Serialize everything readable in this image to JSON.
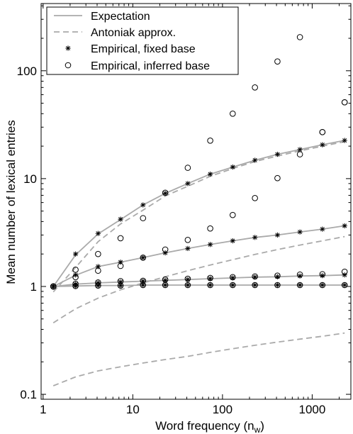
{
  "chart_data": {
    "type": "line",
    "xlabel_main": "Word frequency (n",
    "xlabel_sub": "w",
    "xlabel_close": ")",
    "ylabel": "Mean number of lexical entries",
    "x_scale": "log",
    "y_scale": "log",
    "xlim": [
      0.95,
      2700
    ],
    "ylim": [
      0.09,
      420
    ],
    "x_ticks": [
      1,
      10,
      100,
      1000
    ],
    "x_tick_labels": [
      "1",
      "10",
      "100",
      "1000"
    ],
    "y_ticks": [
      0.1,
      1,
      10,
      100
    ],
    "y_tick_labels": [
      "0.1",
      "1",
      "10",
      "100"
    ],
    "grid": false,
    "legend_position": "top-left",
    "legend": [
      {
        "label": "Expectation",
        "style": "solid-line",
        "color": "#aaaaaa"
      },
      {
        "label": "Antoniak approx.",
        "style": "dashed-line",
        "color": "#aaaaaa"
      },
      {
        "label": "Empirical, fixed base",
        "style": "star-marker",
        "color": "#000000"
      },
      {
        "label": "Empirical, inferred base",
        "style": "open-circle-marker",
        "color": "#000000"
      }
    ],
    "x": [
      1.3,
      2.3,
      4.1,
      7.3,
      13,
      23,
      41,
      73,
      130,
      230,
      410,
      730,
      1300,
      2300
    ],
    "series": [
      {
        "kind": "expectation",
        "values": [
          1.0,
          1.96,
          3.07,
          4.17,
          5.7,
          7.3,
          9.0,
          11.0,
          12.8,
          14.8,
          16.8,
          18.6,
          20.6,
          22.6
        ]
      },
      {
        "kind": "expectation",
        "values": [
          1.0,
          1.27,
          1.53,
          1.68,
          1.85,
          2.05,
          2.25,
          2.45,
          2.65,
          2.85,
          3.0,
          3.2,
          3.4,
          3.65
        ]
      },
      {
        "kind": "expectation",
        "values": [
          1.0,
          1.05,
          1.08,
          1.1,
          1.12,
          1.14,
          1.16,
          1.18,
          1.2,
          1.22,
          1.23,
          1.25,
          1.26,
          1.28
        ]
      },
      {
        "kind": "expectation",
        "values": [
          1.0,
          1.01,
          1.02,
          1.02,
          1.03,
          1.03,
          1.03,
          1.03,
          1.03,
          1.03,
          1.03,
          1.03,
          1.03,
          1.03
        ]
      },
      {
        "kind": "antoniak",
        "values": [
          0.89,
          1.5,
          2.6,
          3.8,
          5.1,
          6.9,
          8.5,
          10.5,
          12.4,
          14.4,
          16.2,
          18.1,
          20.0,
          22.0
        ]
      },
      {
        "kind": "antoniak",
        "values": [
          0.46,
          0.62,
          0.78,
          0.93,
          1.08,
          1.23,
          1.4,
          1.58,
          1.77,
          1.98,
          2.2,
          2.42,
          2.65,
          2.9
        ]
      },
      {
        "kind": "antoniak",
        "values": [
          0.12,
          0.145,
          0.165,
          0.18,
          0.195,
          0.21,
          0.225,
          0.245,
          0.265,
          0.285,
          0.305,
          0.325,
          0.345,
          0.37
        ]
      },
      {
        "kind": "empirical_fixed",
        "values": [
          1.0,
          2.0,
          3.1,
          4.2,
          5.7,
          7.3,
          9.0,
          11.0,
          12.8,
          14.8,
          16.8,
          18.6,
          20.6,
          22.6
        ]
      },
      {
        "kind": "empirical_fixed",
        "values": [
          1.0,
          1.28,
          1.53,
          1.68,
          1.85,
          2.05,
          2.25,
          2.45,
          2.65,
          2.85,
          3.0,
          3.2,
          3.4,
          3.65
        ]
      },
      {
        "kind": "empirical_fixed",
        "values": [
          1.0,
          1.05,
          1.08,
          1.1,
          1.12,
          1.14,
          1.16,
          1.18,
          1.2,
          1.22,
          1.23,
          1.25,
          1.26,
          1.28
        ]
      },
      {
        "kind": "empirical_fixed",
        "values": [
          1.0,
          1.01,
          1.02,
          1.02,
          1.03,
          1.03,
          1.03,
          1.03,
          1.03,
          1.03,
          1.03,
          1.03,
          1.03,
          1.03
        ]
      },
      {
        "kind": "empirical_inferred",
        "values": [
          1.0,
          1.43,
          2.0,
          2.8,
          4.3,
          7.4,
          12.6,
          22.5,
          40.0,
          70.0,
          122.0,
          205.0,
          27.0,
          51.0
        ]
      },
      {
        "kind": "empirical_inferred",
        "values": [
          1.0,
          1.22,
          1.4,
          1.55,
          1.85,
          2.2,
          2.7,
          3.45,
          4.6,
          6.6,
          10.1,
          16.8,
          27.0,
          51.0
        ]
      },
      {
        "kind": "empirical_inferred",
        "values": [
          1.0,
          1.06,
          1.09,
          1.12,
          1.13,
          1.16,
          1.18,
          1.2,
          1.22,
          1.24,
          1.26,
          1.29,
          1.3,
          1.37
        ]
      },
      {
        "kind": "empirical_inferred",
        "values": [
          1.0,
          1.01,
          1.02,
          1.02,
          1.03,
          1.03,
          1.03,
          1.03,
          1.03,
          1.03,
          1.03,
          1.03,
          1.03,
          1.03
        ]
      }
    ]
  }
}
